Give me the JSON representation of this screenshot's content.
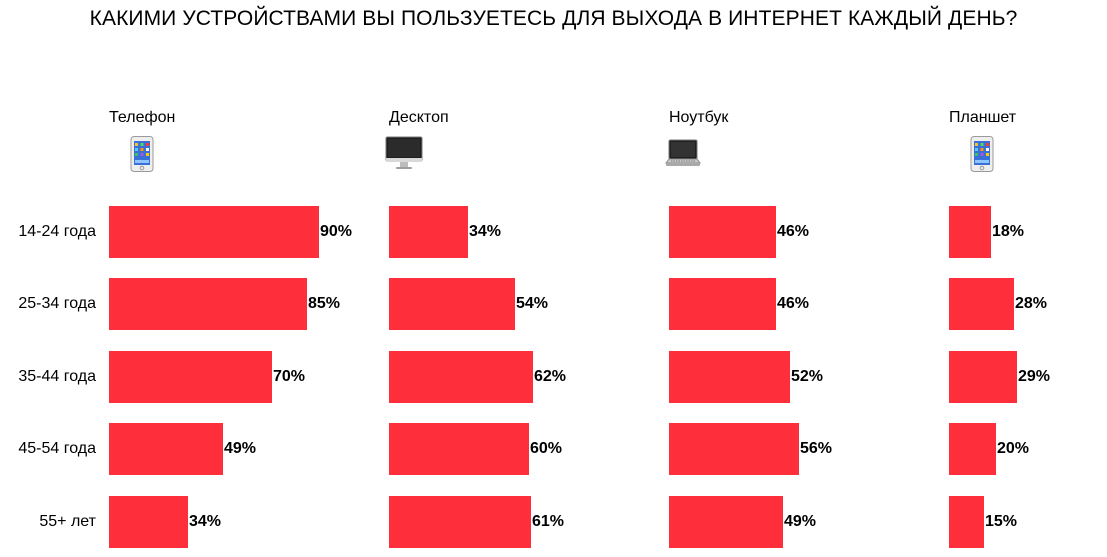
{
  "title": "КАКИМИ УСТРОЙСТВАМИ ВЫ ПОЛЬЗУЕТЕСЬ ДЛЯ ВЫХОДА В ИНТЕРНЕТ КАЖДЫЙ ДЕНЬ?",
  "colors": {
    "bar": "#ff2e3b"
  },
  "chart_data": {
    "type": "bar",
    "orientation": "horizontal",
    "title": "КАКИМИ УСТРОЙСТВАМИ ВЫ ПОЛЬЗУЕТЕСЬ ДЛЯ ВЫХОДА В ИНТЕРНЕТ КАЖДЫЙ ДЕНЬ?",
    "categories": [
      "14-24 года",
      "25-34 года",
      "35-44 года",
      "45-54 года",
      "55+ лет"
    ],
    "unit": "%",
    "xlim": [
      0,
      100
    ],
    "series": [
      {
        "name": "Телефон",
        "icon": "phone-icon",
        "values": [
          90,
          85,
          70,
          49,
          34
        ],
        "labels": [
          "90%",
          "85%",
          "70%",
          "49%",
          "34%"
        ]
      },
      {
        "name": "Десктоп",
        "icon": "desktop-icon",
        "values": [
          34,
          54,
          62,
          60,
          61
        ],
        "labels": [
          "34%",
          "54%",
          "62%",
          "60%",
          "61%"
        ]
      },
      {
        "name": "Ноутбук",
        "icon": "laptop-icon",
        "values": [
          46,
          46,
          52,
          56,
          49
        ],
        "labels": [
          "46%",
          "46%",
          "52%",
          "56%",
          "49%"
        ]
      },
      {
        "name": "Планшет",
        "icon": "tablet-icon",
        "values": [
          18,
          28,
          29,
          20,
          15
        ],
        "labels": [
          "18%",
          "28%",
          "29%",
          "20%",
          "15%"
        ]
      }
    ]
  }
}
